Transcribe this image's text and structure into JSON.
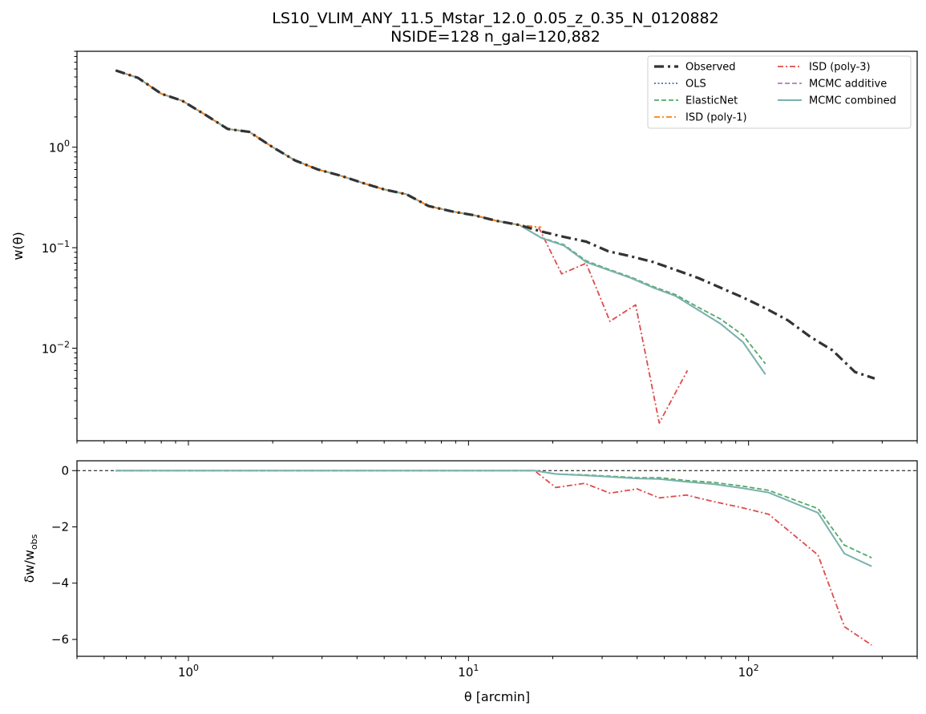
{
  "title_line1": "LS10_VLIM_ANY_11.5_Mstar_12.0_0.05_z_0.35_N_0120882",
  "title_line2": "NSIDE=128  n_gal=120,882",
  "chart_data": [
    {
      "type": "line",
      "panel": "top",
      "ylabel": "w(θ)",
      "yscale": "log",
      "xscale": "log",
      "xlim": [
        0.4,
        400
      ],
      "ylim": [
        0.0012,
        9.0
      ],
      "y_ticks": [
        {
          "value": 0.01,
          "base": "10",
          "exp": "−2"
        },
        {
          "value": 0.1,
          "base": "10",
          "exp": "−1"
        },
        {
          "value": 1,
          "base": "10",
          "exp": "0"
        }
      ],
      "legend_position": "top-right",
      "series": [
        {
          "name": "Observed",
          "color": "#333333",
          "style": "dashdot-thick",
          "x": [
            0.55,
            0.66,
            0.8,
            0.95,
            1.15,
            1.38,
            1.65,
            2.0,
            2.4,
            2.9,
            3.5,
            4.2,
            5.0,
            6.0,
            7.2,
            8.7,
            10.5,
            12.6,
            15.2,
            18.2,
            21.9,
            26.3,
            31.6,
            38.0,
            45.7,
            55.0,
            66.1,
            79.4,
            95.5,
            114.8,
            138.0,
            166.0,
            199.5,
            239.9,
            281.8
          ],
          "y": [
            5.8,
            4.9,
            3.4,
            2.9,
            2.1,
            1.52,
            1.42,
            1.0,
            0.74,
            0.6,
            0.52,
            0.44,
            0.38,
            0.34,
            0.26,
            0.23,
            0.21,
            0.185,
            0.168,
            0.145,
            0.128,
            0.115,
            0.092,
            0.082,
            0.072,
            0.06,
            0.05,
            0.04,
            0.032,
            0.025,
            0.019,
            0.013,
            0.0095,
            0.0058,
            0.005
          ]
        },
        {
          "name": "OLS",
          "color": "#4c72b0",
          "style": "dotted",
          "x": [
            0.55,
            0.66,
            0.8,
            0.95,
            1.15,
            1.38,
            1.65,
            2.0,
            2.4,
            2.9,
            3.5,
            4.2,
            5.0,
            6.0,
            7.2,
            8.7,
            10.5,
            12.6,
            15.2,
            18.2,
            21.9,
            26.3,
            31.6,
            38.0,
            45.7,
            55.0,
            66.1,
            79.4,
            95.5,
            114.8
          ],
          "y": [
            5.8,
            4.9,
            3.4,
            2.9,
            2.1,
            1.52,
            1.42,
            1.0,
            0.74,
            0.6,
            0.52,
            0.44,
            0.38,
            0.34,
            0.26,
            0.23,
            0.21,
            0.185,
            0.168,
            0.125,
            0.105,
            0.072,
            0.06,
            0.05,
            0.04,
            0.033,
            0.024,
            0.0175,
            0.0115,
            0.0055
          ]
        },
        {
          "name": "ElasticNet",
          "color": "#55a868",
          "style": "dashed",
          "x": [
            0.55,
            0.66,
            0.8,
            0.95,
            1.15,
            1.38,
            1.65,
            2.0,
            2.4,
            2.9,
            3.5,
            4.2,
            5.0,
            6.0,
            7.2,
            8.7,
            10.5,
            12.6,
            15.2,
            18.2,
            21.9,
            26.3,
            31.6,
            38.0,
            45.7,
            55.0,
            66.1,
            79.4,
            95.5,
            114.8
          ],
          "y": [
            5.8,
            4.9,
            3.4,
            2.9,
            2.1,
            1.52,
            1.42,
            1.0,
            0.74,
            0.6,
            0.52,
            0.44,
            0.38,
            0.34,
            0.26,
            0.23,
            0.21,
            0.185,
            0.168,
            0.126,
            0.107,
            0.074,
            0.061,
            0.051,
            0.041,
            0.034,
            0.0255,
            0.0195,
            0.0135,
            0.007
          ]
        },
        {
          "name": "ISD (poly-1)",
          "color": "#ff7f0e",
          "style": "dashdot",
          "x": [
            0.55,
            0.66,
            0.8,
            0.95,
            1.15,
            1.38,
            1.65,
            2.0,
            2.4,
            2.9,
            3.5,
            4.2,
            5.0,
            6.0,
            7.2,
            8.7,
            10.5,
            12.6,
            15.2,
            18.2
          ],
          "y": [
            5.8,
            4.9,
            3.4,
            2.9,
            2.1,
            1.52,
            1.42,
            1.0,
            0.74,
            0.6,
            0.52,
            0.44,
            0.38,
            0.34,
            0.26,
            0.23,
            0.21,
            0.185,
            0.168,
            0.16
          ]
        },
        {
          "name": "ISD (poly-3)",
          "color": "#dd4c4c",
          "style": "dashdot",
          "x": [
            0.55,
            0.66,
            0.8,
            0.95,
            1.15,
            1.38,
            1.65,
            2.0,
            2.4,
            2.9,
            3.5,
            4.2,
            5.0,
            6.0,
            7.2,
            8.7,
            10.5,
            12.6,
            15.2,
            17.8,
            21.5,
            26.3,
            32.0,
            39.5,
            48.0,
            60.5
          ],
          "y": [
            5.8,
            4.9,
            3.4,
            2.9,
            2.1,
            1.52,
            1.42,
            1.0,
            0.74,
            0.6,
            0.52,
            0.44,
            0.38,
            0.34,
            0.26,
            0.23,
            0.21,
            0.185,
            0.168,
            0.16,
            0.055,
            0.07,
            0.0185,
            0.027,
            0.0018,
            0.006
          ]
        },
        {
          "name": "MCMC additive",
          "color": "#b07ab7",
          "style": "dashed",
          "x": [
            0.55,
            0.66,
            0.8,
            0.95,
            1.15,
            1.38,
            1.65,
            2.0,
            2.4,
            2.9,
            3.5,
            4.2,
            5.0,
            6.0,
            7.2,
            8.7,
            10.5,
            12.6,
            15.2,
            18.2,
            21.9,
            26.3,
            31.6,
            38.0,
            45.7,
            55.0,
            66.1,
            79.4,
            95.5,
            114.8
          ],
          "y": [
            5.8,
            4.9,
            3.4,
            2.9,
            2.1,
            1.52,
            1.42,
            1.0,
            0.74,
            0.6,
            0.52,
            0.44,
            0.38,
            0.34,
            0.26,
            0.23,
            0.21,
            0.185,
            0.168,
            0.125,
            0.105,
            0.072,
            0.06,
            0.05,
            0.04,
            0.033,
            0.024,
            0.0175,
            0.0115,
            0.0055
          ]
        },
        {
          "name": "MCMC combined",
          "color": "#79b2ad",
          "style": "solid",
          "x": [
            0.55,
            0.66,
            0.8,
            0.95,
            1.15,
            1.38,
            1.65,
            2.0,
            2.4,
            2.9,
            3.5,
            4.2,
            5.0,
            6.0,
            7.2,
            8.7,
            10.5,
            12.6,
            15.2,
            18.2,
            21.9,
            26.3,
            31.6,
            38.0,
            45.7,
            55.0,
            66.1,
            79.4,
            95.5,
            114.8
          ],
          "y": [
            5.8,
            4.9,
            3.4,
            2.9,
            2.1,
            1.52,
            1.42,
            1.0,
            0.74,
            0.6,
            0.52,
            0.44,
            0.38,
            0.34,
            0.26,
            0.23,
            0.21,
            0.185,
            0.168,
            0.125,
            0.105,
            0.072,
            0.06,
            0.05,
            0.04,
            0.033,
            0.024,
            0.0175,
            0.0115,
            0.0055
          ]
        }
      ]
    },
    {
      "type": "line",
      "panel": "bottom",
      "xlabel": "θ [arcmin]",
      "ylabel": "δw/w_obs",
      "xscale": "log",
      "xlim": [
        0.4,
        400
      ],
      "ylim": [
        -6.6,
        0.35
      ],
      "y_ticks": [
        {
          "value": 0,
          "label": "0"
        },
        {
          "value": -2,
          "label": "−2"
        },
        {
          "value": -4,
          "label": "−4"
        },
        {
          "value": -6,
          "label": "−6"
        }
      ],
      "x_ticks": [
        {
          "value": 1,
          "base": "10",
          "exp": "0"
        },
        {
          "value": 10,
          "base": "10",
          "exp": "1"
        },
        {
          "value": 100,
          "base": "10",
          "exp": "2"
        }
      ],
      "reference_line": 0,
      "series": [
        {
          "name": "ElasticNet",
          "color": "#55a868",
          "style": "dashed",
          "x": [
            0.55,
            17.2,
            20.5,
            26.0,
            32.0,
            40.0,
            48.0,
            60.0,
            75.0,
            95.0,
            118.0,
            177.0,
            220.0,
            275.0
          ],
          "y": [
            0,
            0,
            -0.12,
            -0.15,
            -0.2,
            -0.25,
            -0.25,
            -0.35,
            -0.42,
            -0.55,
            -0.7,
            -1.35,
            -2.65,
            -3.1
          ]
        },
        {
          "name": "ISD (poly-3)",
          "color": "#dd4c4c",
          "style": "dashdot",
          "x": [
            0.55,
            17.2,
            20.5,
            26.0,
            32.0,
            40.0,
            48.0,
            60.0,
            75.0,
            95.0,
            118.0,
            177.0,
            220.0,
            275.0
          ],
          "y": [
            0,
            0,
            -0.6,
            -0.45,
            -0.8,
            -0.65,
            -0.97,
            -0.87,
            -1.1,
            -1.32,
            -1.55,
            -3.0,
            -5.55,
            -6.2
          ]
        },
        {
          "name": "MCMC combined",
          "color": "#79b2ad",
          "style": "solid",
          "x": [
            0.55,
            17.2,
            20.5,
            26.0,
            32.0,
            40.0,
            48.0,
            60.0,
            75.0,
            95.0,
            118.0,
            177.0,
            220.0,
            275.0
          ],
          "y": [
            0,
            0,
            -0.12,
            -0.17,
            -0.22,
            -0.28,
            -0.3,
            -0.4,
            -0.48,
            -0.62,
            -0.78,
            -1.5,
            -2.95,
            -3.4
          ]
        }
      ]
    }
  ]
}
